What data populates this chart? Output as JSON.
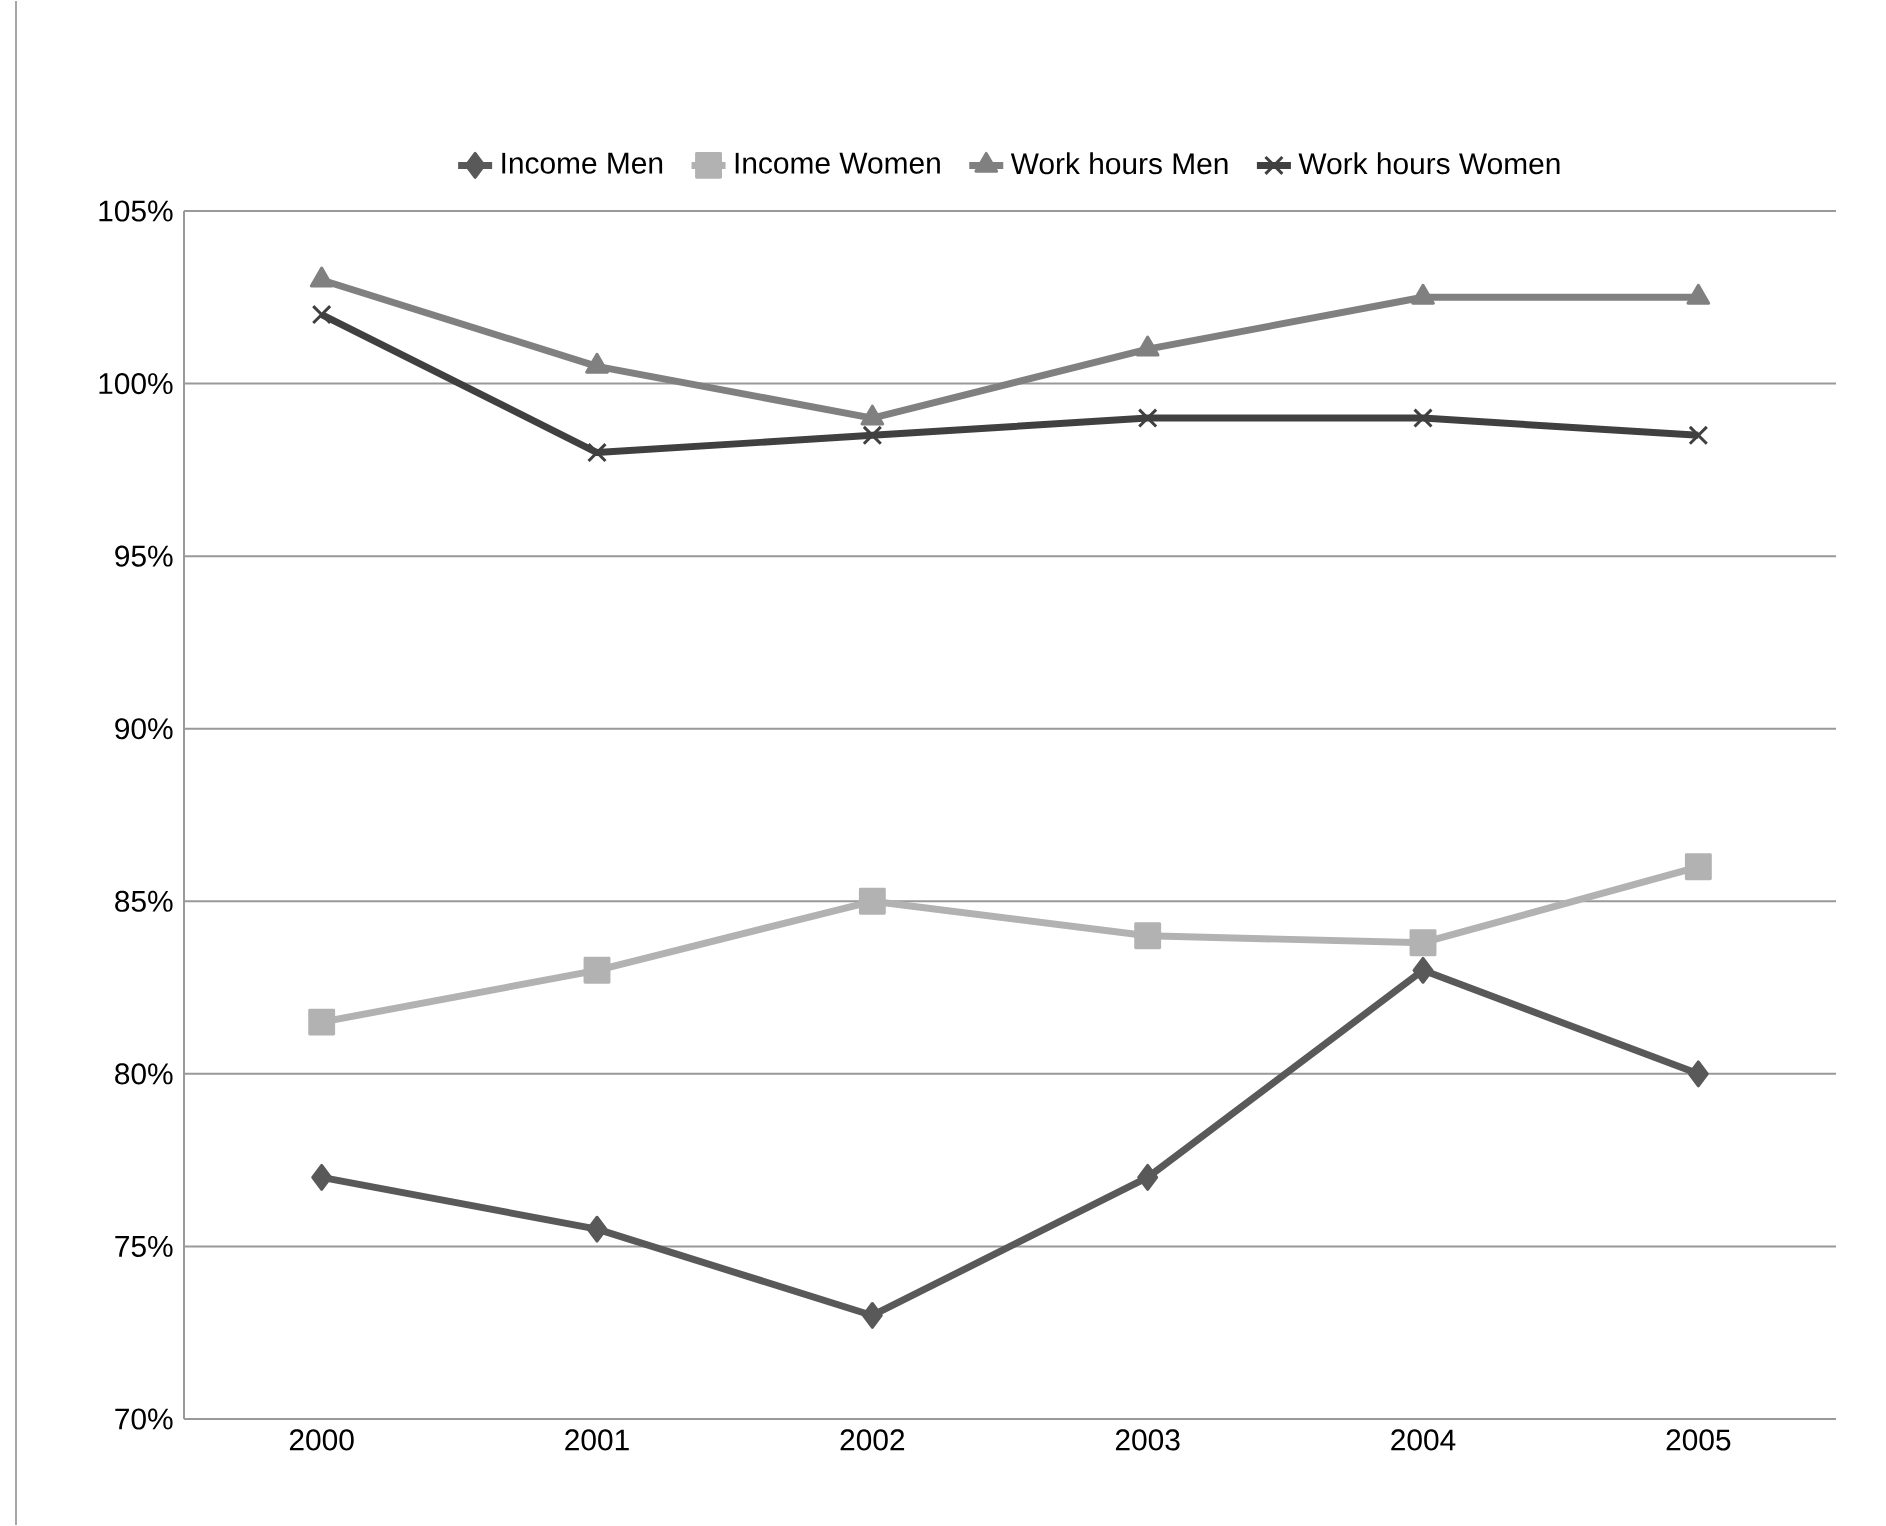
{
  "chart_data": {
    "type": "line",
    "categories": [
      "2000",
      "2001",
      "2002",
      "2003",
      "2004",
      "2005"
    ],
    "series": [
      {
        "name": "Income Men",
        "color": "#595959",
        "marker": "diamond",
        "values": [
          77,
          75.5,
          73,
          77,
          83,
          80
        ]
      },
      {
        "name": "Income Women",
        "color": "#b2b2b2",
        "marker": "square",
        "values": [
          81.5,
          83,
          85,
          84,
          83.8,
          86
        ]
      },
      {
        "name": "Work hours  Men",
        "color": "#808080",
        "marker": "triangle",
        "values": [
          103,
          100.5,
          99,
          101,
          102.5,
          102.5
        ]
      },
      {
        "name": "Work hours  Women",
        "color": "#404040",
        "marker": "cross",
        "values": [
          102,
          98,
          98.5,
          99,
          99,
          98.5
        ]
      }
    ],
    "ylim": [
      70,
      105
    ],
    "yticks": [
      {
        "value": 70,
        "label": "70%"
      },
      {
        "value": 75,
        "label": "75%"
      },
      {
        "value": 80,
        "label": "80%"
      },
      {
        "value": 85,
        "label": "85%"
      },
      {
        "value": 90,
        "label": "90%"
      },
      {
        "value": 95,
        "label": "95%"
      },
      {
        "value": 100,
        "label": "100%"
      },
      {
        "value": 105,
        "label": "105%"
      }
    ],
    "grid": "y",
    "legend": "top",
    "line_style": "solid"
  }
}
